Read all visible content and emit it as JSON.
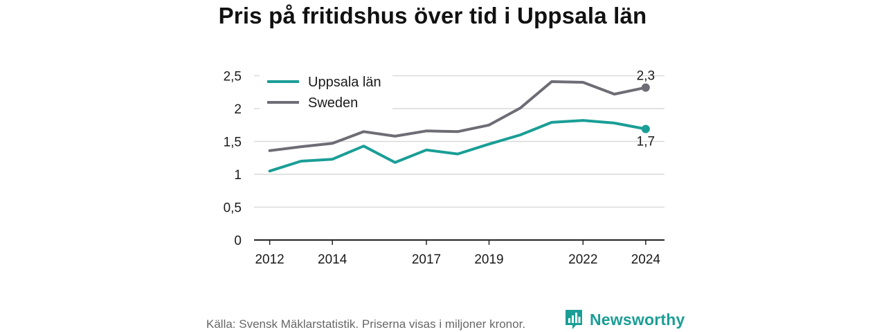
{
  "title": "Pris på fritidshus över tid i Uppsala län",
  "source_note": "Källa: Svensk Mäklarstatistik. Priserna visas i miljoner kronor.",
  "brand": {
    "name": "Newsworthy",
    "icon": "newsworthy-logo-icon",
    "color": "#1a9e96"
  },
  "chart_data": {
    "type": "line",
    "title": "Pris på fritidshus över tid i Uppsala län",
    "xlabel": "",
    "ylabel": "",
    "x": [
      2012,
      2013,
      2014,
      2015,
      2016,
      2017,
      2018,
      2019,
      2020,
      2021,
      2022,
      2023,
      2024
    ],
    "xticks": [
      2012,
      2014,
      2017,
      2019,
      2022,
      2024
    ],
    "xlim": [
      2011.5,
      2024.6
    ],
    "ylim": [
      0,
      2.5
    ],
    "yticks": [
      0,
      0.5,
      1,
      1.5,
      2,
      2.5
    ],
    "ytick_labels": [
      "0",
      "0,5",
      "1",
      "1,5",
      "2",
      "2,5"
    ],
    "grid": "horizontal",
    "legend": "top-left",
    "series": [
      {
        "name": "Uppsala län",
        "color": "#1a9e96",
        "values": [
          1.05,
          1.2,
          1.23,
          1.43,
          1.18,
          1.37,
          1.31,
          1.46,
          1.6,
          1.79,
          1.82,
          1.78,
          1.69
        ],
        "end_label": "1,7",
        "end_label_position": "below"
      },
      {
        "name": "Sweden",
        "color": "#6e6c74",
        "values": [
          1.36,
          1.42,
          1.47,
          1.65,
          1.58,
          1.66,
          1.65,
          1.75,
          2.01,
          2.41,
          2.4,
          2.22,
          2.32
        ],
        "end_label": "2,3",
        "end_label_position": "above"
      }
    ]
  }
}
